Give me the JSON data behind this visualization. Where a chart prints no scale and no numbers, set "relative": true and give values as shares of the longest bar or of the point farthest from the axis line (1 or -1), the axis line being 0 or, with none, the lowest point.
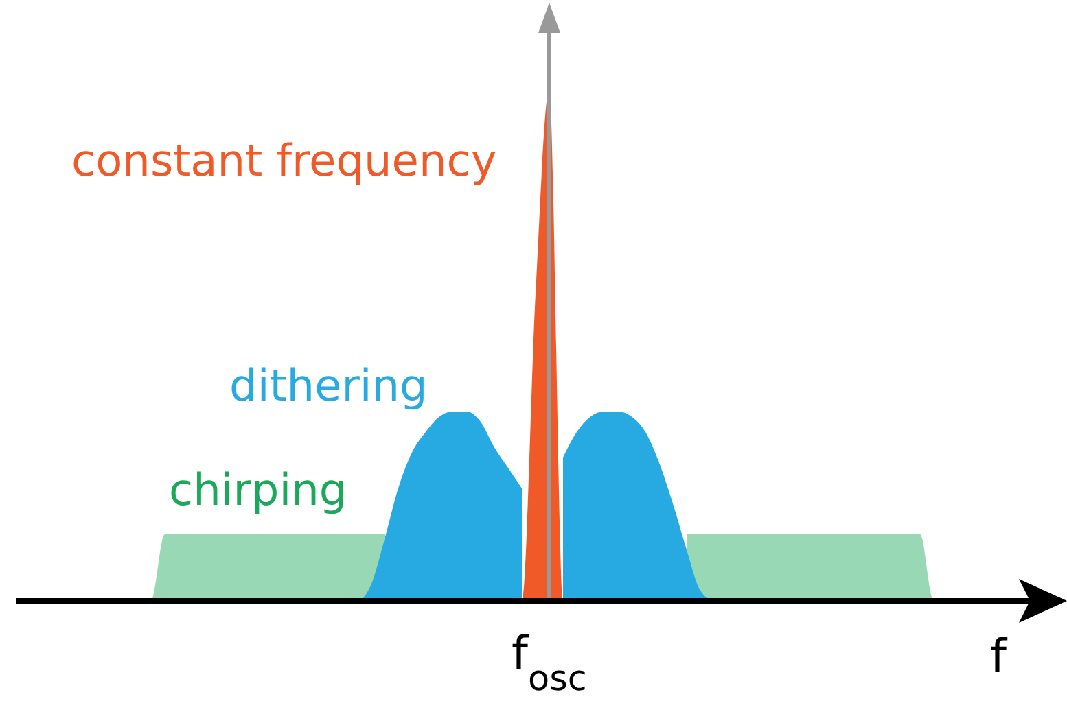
{
  "chart_data": {
    "type": "area",
    "relative": true,
    "xlabel": "f",
    "categories": [
      null,
      null,
      null,
      null,
      null,
      null,
      null,
      null,
      null,
      null,
      null,
      null,
      null,
      null,
      null,
      null,
      null,
      null,
      null,
      null,
      null,
      null,
      null,
      null,
      null,
      null,
      null,
      null,
      null,
      null,
      null,
      null,
      null,
      null,
      null,
      null,
      null,
      null,
      null,
      null,
      null,
      null,
      null,
      null,
      null,
      null,
      null,
      null,
      null,
      null,
      null,
      null,
      null,
      null,
      null,
      null,
      null,
      null,
      null,
      null,
      null
    ],
    "annotations": [
      "f$_{osc}$"
    ],
    "series": [
      {
        "name": "chirping",
        "color": "#1aa85a",
        "values": [
          0,
          0,
          0.13,
          0.13,
          0.13,
          0.13,
          0.13,
          0.13,
          0.13,
          0.13,
          0.13,
          0.13,
          0.13,
          0.13,
          0.13,
          0.13,
          0.13,
          0.13,
          0.13,
          null,
          null,
          null,
          null,
          null,
          null,
          null,
          null,
          null,
          null,
          null,
          null,
          null,
          null,
          null,
          null,
          null,
          null,
          null,
          null,
          null,
          0.13,
          0.13,
          0.13,
          0.13,
          0.13,
          0.13,
          0.13,
          0.13,
          0.13,
          0.13,
          0.13,
          0.13,
          0.13,
          0.13,
          0.13,
          0.13,
          0.13,
          0.13,
          0,
          0,
          0
        ]
      },
      {
        "name": "dithering",
        "color": "#27aae1",
        "values": [
          0,
          0,
          0,
          0,
          0,
          0,
          0,
          0,
          0,
          0,
          0,
          0,
          0,
          0,
          0,
          0,
          0,
          0.03,
          0.12,
          0.22,
          0.29,
          0.33,
          0.36,
          0.37,
          0.37,
          0.35,
          0.3,
          0.26,
          0.22,
          null,
          null,
          0.28,
          0.33,
          0.36,
          0.37,
          0.37,
          0.36,
          0.33,
          0.27,
          0.19,
          0.1,
          0.02,
          0,
          0,
          0,
          0,
          0,
          0,
          0,
          0,
          0,
          0,
          0,
          0,
          0,
          0,
          0,
          0,
          0,
          0,
          0
        ]
      },
      {
        "name": "constant frequency",
        "color": "#f05a28",
        "values": [
          0,
          0,
          0,
          0,
          0,
          0,
          0,
          0,
          0,
          0,
          0,
          0,
          0,
          0,
          0,
          0,
          0,
          0,
          0,
          0,
          0,
          0,
          0,
          0,
          0,
          0,
          0,
          0,
          0,
          0.6,
          1,
          0,
          0,
          0,
          0,
          0,
          0,
          0,
          0,
          0,
          0,
          0,
          0,
          0,
          0,
          0,
          0,
          0,
          0,
          0,
          0,
          0,
          0,
          0,
          0,
          0,
          0,
          0,
          0,
          0,
          0
        ]
      }
    ]
  }
}
